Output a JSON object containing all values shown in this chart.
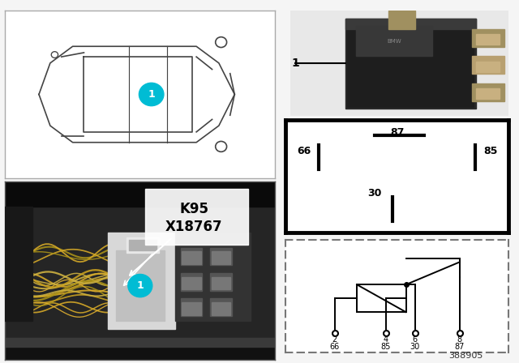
{
  "doc_number": "388905",
  "bg_color": "#f5f5f5",
  "callout_color": "#00bcd4",
  "car_color": "#444444",
  "pin_labels": [
    "87",
    "66",
    "85",
    "30"
  ],
  "schematic_pins_num": [
    "2",
    "4",
    "6",
    "8"
  ],
  "schematic_pins_lbl": [
    "66",
    "85",
    "30",
    "87"
  ],
  "k95": "K95",
  "x18767": "X18767",
  "relay_label": "1",
  "car_callout": "1",
  "photo_callout": "1"
}
